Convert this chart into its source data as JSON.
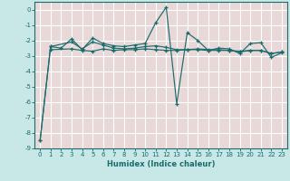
{
  "xlabel": "Humidex (Indice chaleur)",
  "background_color": "#c8e8e8",
  "plot_bg_color": "#e8d8d8",
  "grid_color": "#ffffff",
  "line_color": "#1a6b6b",
  "xlim": [
    -0.5,
    23.5
  ],
  "ylim": [
    -9,
    0.5
  ],
  "ytick_vals": [
    0,
    -1,
    -2,
    -3,
    -4,
    -5,
    -6,
    -7,
    -8,
    -9
  ],
  "series": [
    {
      "x": [
        0,
        1,
        2,
        3,
        4,
        5,
        6,
        7,
        8,
        9,
        10,
        11,
        12,
        13,
        14,
        15,
        16,
        17,
        18,
        19,
        20,
        21,
        22,
        23
      ],
      "y": [
        -8.5,
        -2.4,
        -2.5,
        -1.9,
        -2.6,
        -1.85,
        -2.2,
        -2.35,
        -2.4,
        -2.3,
        -2.2,
        -0.85,
        0.15,
        -6.1,
        -1.5,
        -2.0,
        -2.65,
        -2.5,
        -2.55,
        -2.85,
        -2.2,
        -2.15,
        -3.1,
        -2.8
      ]
    },
    {
      "x": [
        0,
        1,
        3,
        4,
        5,
        6,
        7,
        8,
        9,
        10,
        11,
        12,
        13,
        14,
        15,
        16,
        17,
        18,
        19,
        20,
        21,
        22,
        23
      ],
      "y": [
        -8.5,
        -2.4,
        -2.1,
        -2.55,
        -2.1,
        -2.3,
        -2.5,
        -2.55,
        -2.5,
        -2.4,
        -2.35,
        -2.45,
        -2.6,
        -2.6,
        -2.55,
        -2.6,
        -2.6,
        -2.65,
        -2.75,
        -2.65,
        -2.65,
        -2.85,
        -2.75
      ]
    },
    {
      "x": [
        1,
        3,
        4,
        5,
        6,
        7,
        8,
        9,
        10,
        11,
        12,
        13,
        14,
        15,
        16,
        17,
        18,
        19,
        20,
        21,
        22,
        23
      ],
      "y": [
        -2.6,
        -2.55,
        -2.65,
        -2.7,
        -2.55,
        -2.65,
        -2.6,
        -2.6,
        -2.55,
        -2.6,
        -2.65,
        -2.65,
        -2.6,
        -2.6,
        -2.65,
        -2.65,
        -2.65,
        -2.7,
        -2.65,
        -2.65,
        -2.85,
        -2.75
      ]
    }
  ]
}
